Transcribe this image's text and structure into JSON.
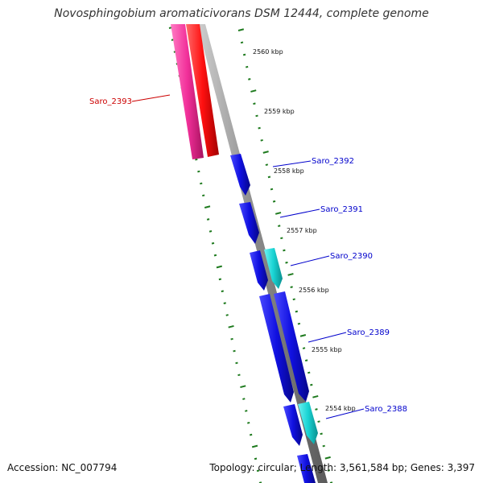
{
  "title": "Novosphingobium aromaticivorans DSM 12444, complete genome",
  "accession_text": "Accession: NC_007794",
  "summary_text": "Topology: circular; Length: 3,561,584 bp; Genes: 3,397",
  "colors": {
    "backbone": "#7f7f7f",
    "tick": "#1e7a1e",
    "gene_blue": "#1010e0",
    "gene_cyan": "#19d4d4",
    "gene_red": "#ff1a1a",
    "gene_pink": "#f2309a",
    "label_blue": "#0000cc",
    "label_red": "#cc0000"
  },
  "scale_labels": [
    "2560 kbp",
    "2559 kbp",
    "2558 kbp",
    "2557 kbp",
    "2556 kbp",
    "2555 kbp",
    "2554 kbp"
  ],
  "genes": [
    {
      "label": "Saro_2393",
      "strand": "minus",
      "color": "pink"
    },
    {
      "label": "Saro_2392",
      "strand": "plus",
      "color": "blue"
    },
    {
      "label": "Saro_2391",
      "strand": "plus",
      "color": "blue"
    },
    {
      "label": "Saro_2390",
      "strand": "plus",
      "color": "cyan"
    },
    {
      "label": "Saro_2389",
      "strand": "plus",
      "color": "blue"
    },
    {
      "label": "Saro_2388",
      "strand": "plus",
      "color": "cyan"
    }
  ]
}
